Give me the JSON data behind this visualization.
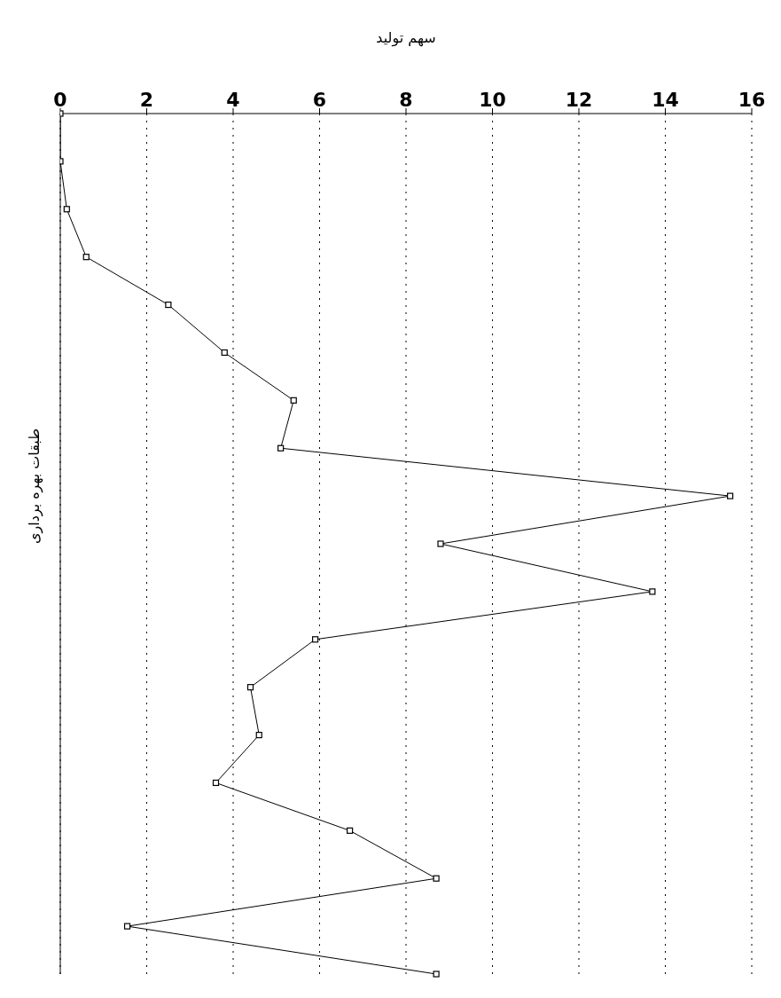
{
  "chart_data": {
    "type": "line",
    "orientation": "horizontal",
    "xlabel": "سهم تولید",
    "ylabel": "طبقات بهره برداری",
    "categories": [
      null,
      null,
      null,
      null,
      null,
      null,
      null,
      null,
      null,
      null,
      null,
      null,
      null,
      null,
      null,
      null,
      null,
      null,
      null
    ],
    "values": [
      0,
      0,
      0.15,
      0.6,
      2.5,
      3.8,
      5.4,
      5.1,
      15.5,
      8.8,
      13.7,
      5.9,
      4.4,
      4.6,
      3.6,
      6.7,
      8.7,
      1.55,
      8.7
    ],
    "color": "#000000",
    "xlim": [
      0,
      16
    ],
    "xticks": [
      0,
      2,
      4,
      6,
      8,
      10,
      12,
      14,
      16
    ],
    "grid": "x",
    "marker": "square",
    "line_style": "solid"
  }
}
